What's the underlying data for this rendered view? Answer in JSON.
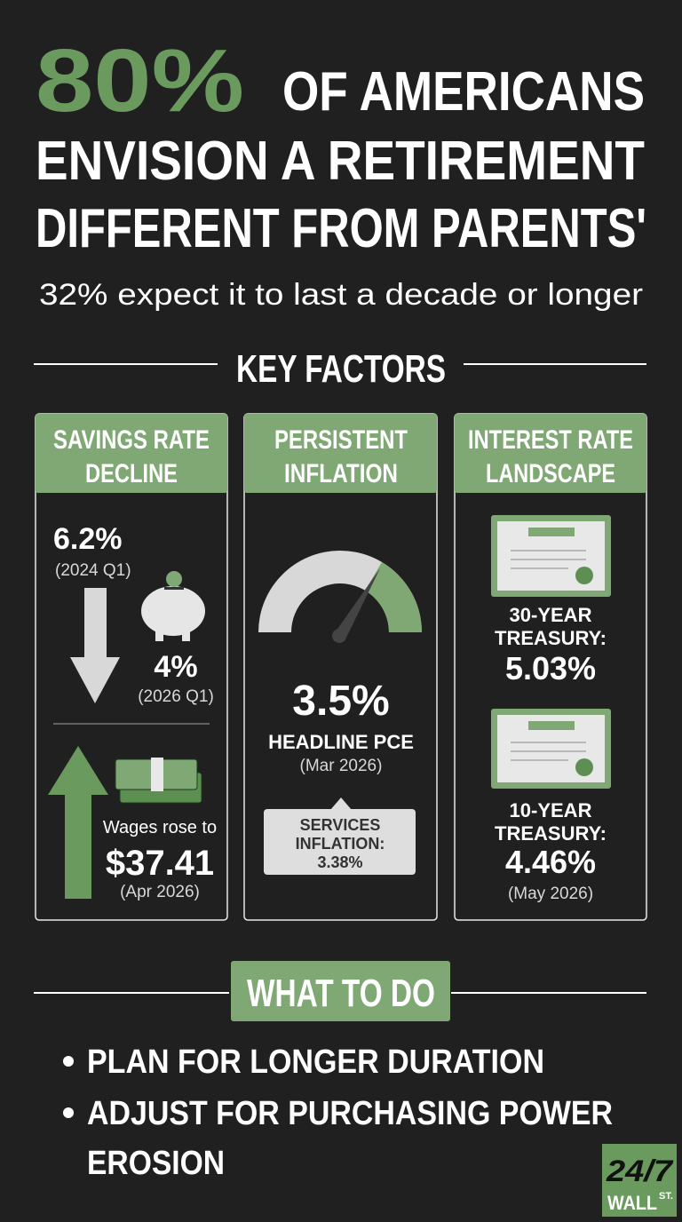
{
  "header": {
    "highlight": "80%",
    "title_lines": [
      "OF AMERICANS",
      "ENVISION A RETIREMENT",
      "DIFFERENT FROM PARENTS'"
    ],
    "subtitle": "32% expect it to last a decade or longer"
  },
  "key_factors": {
    "heading": "KEY FACTORS",
    "cards": [
      {
        "title_lines": [
          "SAVINGS RATE",
          "DECLINE"
        ],
        "from_value": "6.2%",
        "from_period": "(2024 Q1)",
        "to_value": "4%",
        "to_period": "(2026 Q1)",
        "wages_label": "Wages rose to",
        "wages_value": "$37.41",
        "wages_period": "(Apr 2026)"
      },
      {
        "title_lines": [
          "PERSISTENT",
          "INFLATION"
        ],
        "value": "3.5%",
        "label": "HEADLINE PCE",
        "period": "(Mar 2026)",
        "callout_lines": [
          "SERVICES",
          "INFLATION:",
          "3.38%"
        ]
      },
      {
        "title_lines": [
          "INTEREST RATE",
          "LANDSCAPE"
        ],
        "treasury_30_lines": [
          "30-YEAR",
          "TREASURY:",
          "5.03%"
        ],
        "treasury_10_lines": [
          "10-YEAR",
          "TREASURY:",
          "4.46%"
        ],
        "period": "(May 2026)"
      }
    ]
  },
  "what_to_do": {
    "heading": "WHAT TO DO",
    "bullets": [
      [
        "PLAN FOR LONGER DURATION"
      ],
      [
        "ADJUST FOR PURCHASING POWER",
        "EROSION"
      ]
    ]
  },
  "logo": {
    "top": "24/7",
    "bottom": "WALL",
    "suffix": "ST."
  }
}
